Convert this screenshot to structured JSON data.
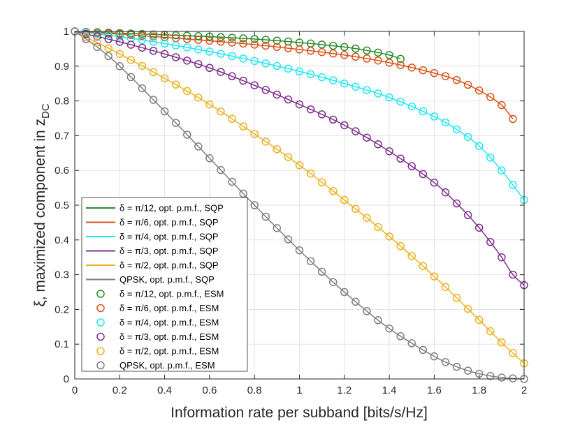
{
  "chart_data": {
    "type": "line",
    "xlabel": "Information rate per subband [bits/s/Hz]",
    "ylabel_main": "ξ, maximized component in z",
    "ylabel_sub": "DC",
    "xlim": [
      0,
      2
    ],
    "ylim": [
      0,
      1
    ],
    "xticks": [
      0,
      0.2,
      0.4,
      0.6,
      0.8,
      1,
      1.2,
      1.4,
      1.6,
      1.8,
      2
    ],
    "xtick_labels": [
      "0",
      "0.2",
      "0.4",
      "0.6",
      "0.8",
      "1",
      "1.2",
      "1.4",
      "1.6",
      "1.8",
      "2"
    ],
    "yticks": [
      0,
      0.1,
      0.2,
      0.3,
      0.4,
      0.5,
      0.6,
      0.7,
      0.8,
      0.9,
      1
    ],
    "ytick_labels": [
      "0",
      "0.1",
      "0.2",
      "0.3",
      "0.4",
      "0.5",
      "0.6",
      "0.7",
      "0.8",
      "0.9",
      "1"
    ],
    "grid": true,
    "legend_position": "lower-left",
    "series": [
      {
        "name": "δ = π/12, opt. p.m.f., SQP",
        "marker_name": "δ = π/12, opt. p.m.f., ESM",
        "color": "#2a8a2a",
        "x_end": 1.45,
        "x": [
          0,
          0.2,
          0.4,
          0.6,
          0.8,
          1.0,
          1.2,
          1.3,
          1.4,
          1.45
        ],
        "y": [
          1.0,
          0.995,
          0.99,
          0.985,
          0.978,
          0.968,
          0.955,
          0.945,
          0.932,
          0.921
        ]
      },
      {
        "name": "δ = π/6, opt. p.m.f., SQP",
        "marker_name": "δ = π/6, opt. p.m.f., ESM",
        "color": "#d95319",
        "x_end": 1.95,
        "x": [
          0,
          0.2,
          0.4,
          0.6,
          0.8,
          1.0,
          1.2,
          1.4,
          1.6,
          1.7,
          1.8,
          1.9,
          1.95
        ],
        "y": [
          1.0,
          0.992,
          0.983,
          0.973,
          0.962,
          0.948,
          0.932,
          0.91,
          0.88,
          0.86,
          0.83,
          0.788,
          0.748
        ]
      },
      {
        "name": "δ = π/4, opt. p.m.f., SQP",
        "marker_name": "δ = π/4, opt. p.m.f., ESM",
        "color": "#22e8f0",
        "x_end": 2.0,
        "x": [
          0,
          0.2,
          0.4,
          0.6,
          0.8,
          1.0,
          1.2,
          1.4,
          1.6,
          1.7,
          1.8,
          1.9,
          1.95,
          2.0
        ],
        "y": [
          1.0,
          0.985,
          0.965,
          0.942,
          0.915,
          0.885,
          0.85,
          0.81,
          0.755,
          0.718,
          0.67,
          0.6,
          0.558,
          0.515
        ]
      },
      {
        "name": "δ = π/3, opt. p.m.f., SQP",
        "marker_name": "δ = π/3, opt. p.m.f., ESM",
        "color": "#7e2f8e",
        "x_end": 2.0,
        "x": [
          0,
          0.2,
          0.4,
          0.6,
          0.8,
          1.0,
          1.2,
          1.4,
          1.6,
          1.7,
          1.8,
          1.9,
          1.95,
          2.0
        ],
        "y": [
          1.0,
          0.97,
          0.935,
          0.895,
          0.845,
          0.79,
          0.73,
          0.655,
          0.565,
          0.505,
          0.435,
          0.35,
          0.3,
          0.27
        ]
      },
      {
        "name": "δ = π/2, opt. p.m.f., SQP",
        "marker_name": "δ = π/2, opt. p.m.f., ESM",
        "color": "#edb120",
        "x_end": 2.0,
        "x": [
          0,
          0.2,
          0.4,
          0.6,
          0.8,
          1.0,
          1.2,
          1.4,
          1.6,
          1.8,
          1.9,
          2.0
        ],
        "y": [
          1.0,
          0.935,
          0.865,
          0.79,
          0.705,
          0.615,
          0.515,
          0.41,
          0.295,
          0.17,
          0.105,
          0.045
        ]
      },
      {
        "name": "QPSK, opt. p.m.f., SQP",
        "marker_name": "QPSK, opt. p.m.f., ESM",
        "color": "#808080",
        "x_end": 2.0,
        "x": [
          0,
          0.1,
          0.2,
          0.4,
          0.6,
          0.8,
          1.0,
          1.2,
          1.4,
          1.6,
          1.7,
          1.8,
          1.9,
          2.0
        ],
        "y": [
          1.0,
          0.955,
          0.9,
          0.77,
          0.635,
          0.5,
          0.37,
          0.25,
          0.145,
          0.065,
          0.035,
          0.015,
          0.004,
          0.0
        ]
      }
    ]
  }
}
